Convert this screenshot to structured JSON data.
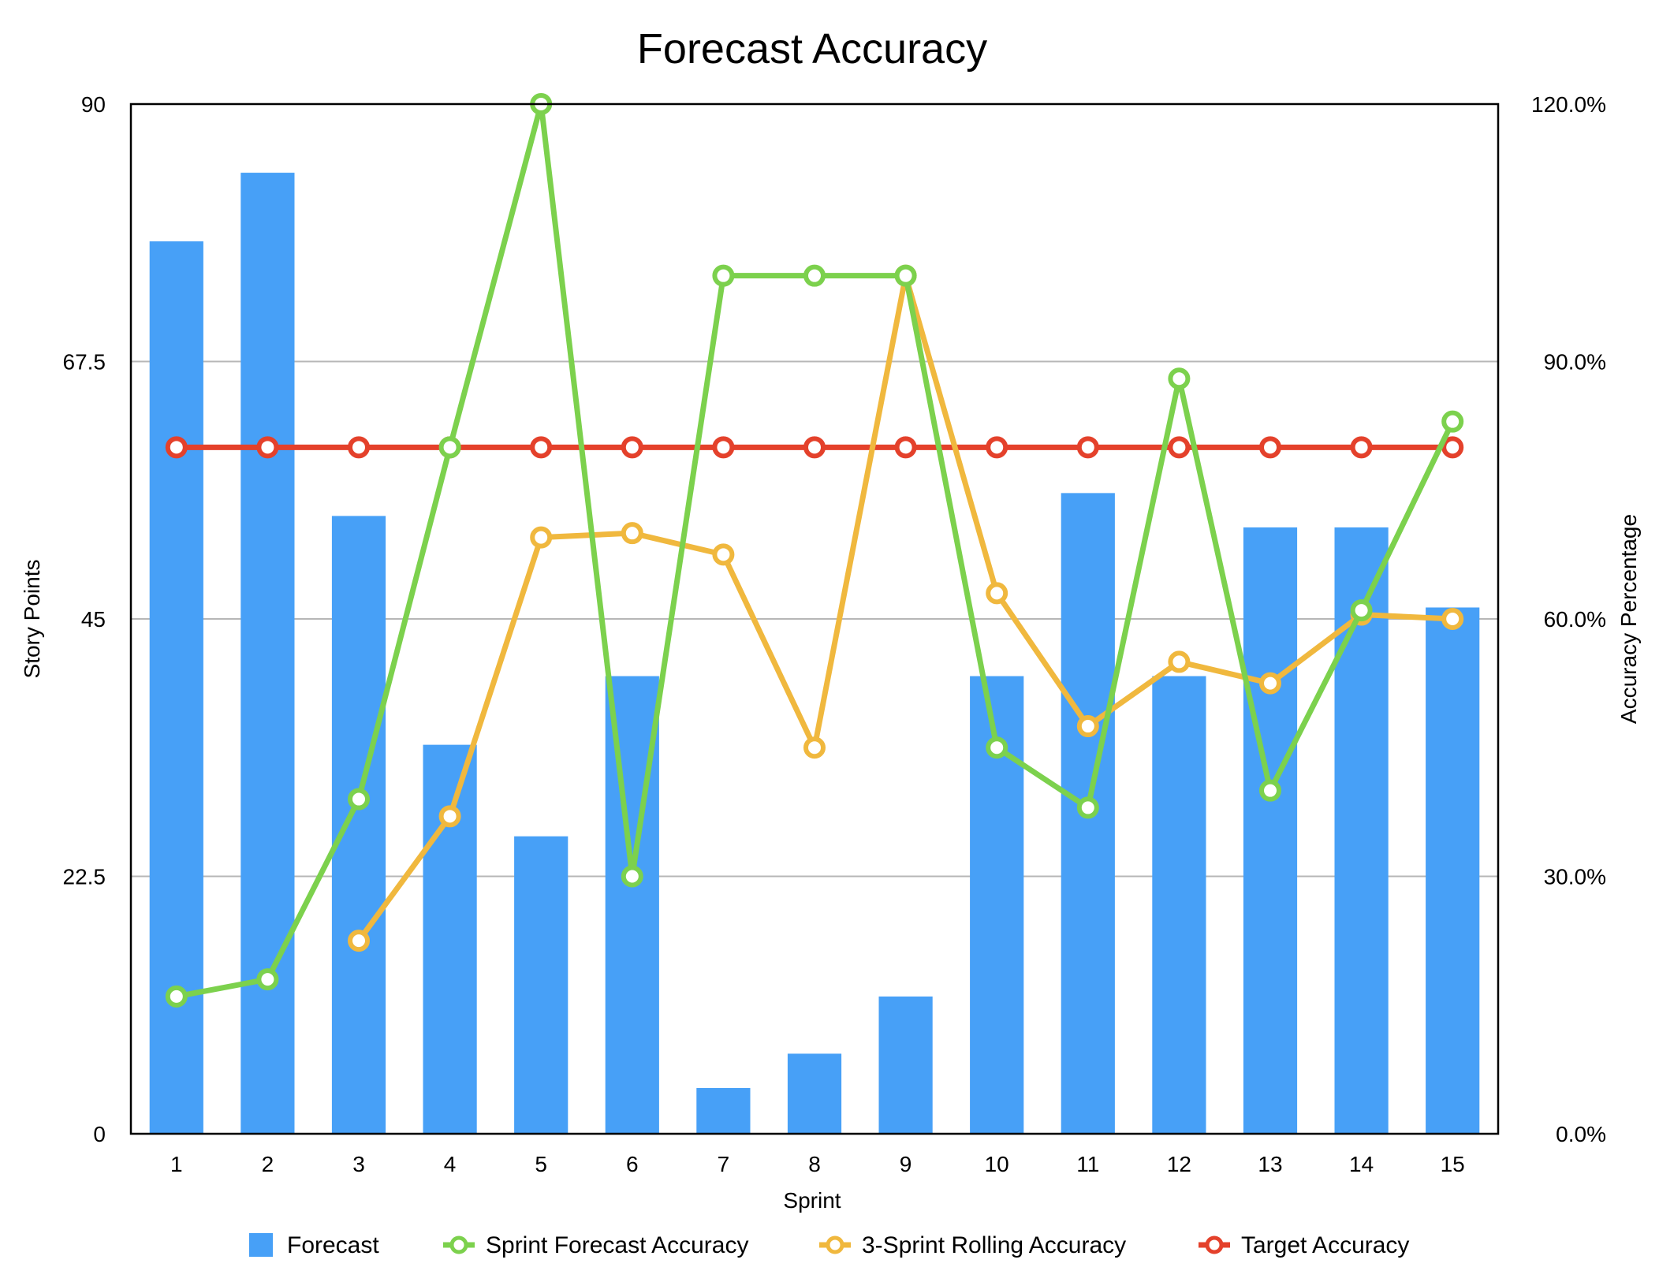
{
  "chart_data": {
    "type": "bar",
    "title": "Forecast Accuracy",
    "xlabel": "Sprint",
    "ylabel": "Story Points",
    "y2label": "Accuracy Percentage",
    "categories": [
      "1",
      "2",
      "3",
      "4",
      "5",
      "6",
      "7",
      "8",
      "9",
      "10",
      "11",
      "12",
      "13",
      "14",
      "15"
    ],
    "ylim": [
      0,
      90
    ],
    "y2lim": [
      0,
      120
    ],
    "y_ticks": [
      "0",
      "22.5",
      "45",
      "67.5",
      "90"
    ],
    "y2_ticks": [
      "0.0%",
      "30.0%",
      "60.0%",
      "90.0%",
      "120.0%"
    ],
    "grid": true,
    "legend_position": "bottom",
    "series": [
      {
        "name": "Forecast",
        "kind": "bar",
        "axis": "left",
        "color": "#47a0f7",
        "values": [
          78,
          84,
          54,
          34,
          26,
          40,
          4,
          7,
          12,
          40,
          56,
          40,
          53,
          53,
          46
        ]
      },
      {
        "name": "Sprint Forecast Accuracy",
        "kind": "line",
        "axis": "right",
        "color": "#7cd14d",
        "values": [
          16,
          18,
          39,
          80,
          120,
          30,
          100,
          100,
          100,
          45,
          38,
          88,
          40,
          61,
          83
        ]
      },
      {
        "name": "3-Sprint Rolling Accuracy",
        "kind": "line",
        "axis": "right",
        "color": "#f0b83e",
        "values": [
          null,
          null,
          22.5,
          37,
          69.5,
          70,
          67.5,
          45,
          100,
          63,
          47.5,
          55,
          52.5,
          60.5,
          60
        ]
      },
      {
        "name": "Target Accuracy",
        "kind": "line",
        "axis": "right",
        "color": "#e4412b",
        "values": [
          80,
          80,
          80,
          80,
          80,
          80,
          80,
          80,
          80,
          80,
          80,
          80,
          80,
          80,
          80
        ]
      }
    ]
  }
}
